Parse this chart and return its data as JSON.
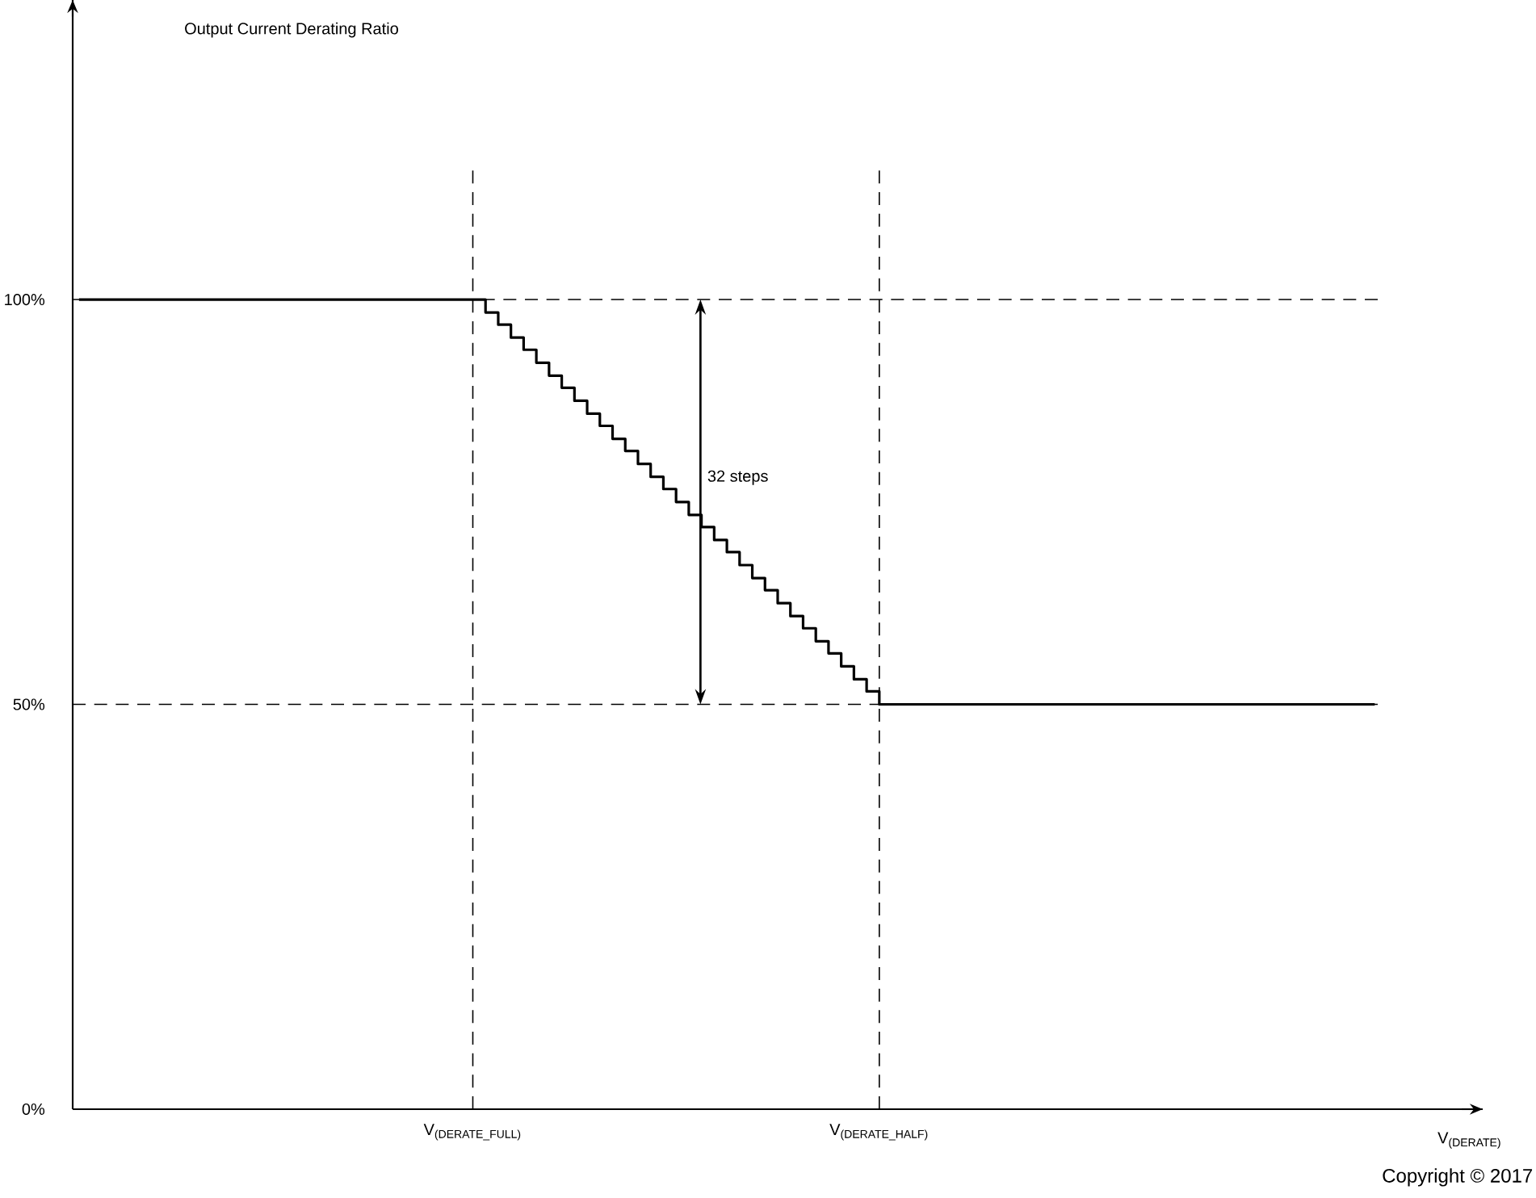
{
  "chart_data": {
    "type": "step",
    "ylabel": "Output Current Derating Ratio",
    "xlabel": "V$_{(DERATE)}$",
    "categories": [
      null,
      null,
      null,
      null,
      null,
      null,
      null,
      null,
      null,
      null,
      null,
      null,
      null,
      null,
      null,
      null,
      null,
      null,
      null,
      null,
      null,
      null,
      null,
      null,
      null,
      null,
      null,
      null,
      null,
      null,
      null,
      "\\text{V}_{\\text{(DERATE\\_FULL)}}",
      null,
      null,
      null,
      null,
      null,
      null,
      null,
      null,
      null,
      null,
      null,
      null,
      null,
      null,
      null,
      null,
      null,
      null,
      null,
      null,
      null,
      null,
      null,
      null,
      null,
      null,
      null,
      null,
      null,
      null,
      null,
      "\\text{V}_{\\text{(DERATE\\_HALF)}}",
      null,
      null,
      null,
      null,
      null,
      null,
      null,
      null,
      null,
      null,
      null,
      null,
      null,
      null,
      null,
      null,
      null,
      null,
      null,
      null,
      null,
      null,
      null,
      null,
      null,
      null,
      null,
      null,
      null,
      null,
      null,
      null,
      null,
      null,
      null,
      null,
      null,
      null,
      null,
      null,
      null,
      null,
      null,
      null,
      null,
      null,
      null
    ],
    "values": [
      100,
      100,
      100,
      100,
      100,
      100,
      100,
      100,
      100,
      100,
      100,
      100,
      100,
      100,
      100,
      100,
      100,
      100,
      100,
      100,
      100,
      100,
      100,
      100,
      100,
      100,
      100,
      100,
      100,
      100,
      100,
      100,
      98.4,
      96.9,
      95.3,
      93.8,
      92.2,
      90.6,
      89.1,
      87.5,
      85.9,
      84.4,
      82.8,
      81.3,
      79.7,
      78.1,
      76.6,
      75,
      73.4,
      71.9,
      70.3,
      68.8,
      67.2,
      65.6,
      64.1,
      62.5,
      60.9,
      59.4,
      57.8,
      56.3,
      54.7,
      53.1,
      51.6,
      50,
      50,
      50,
      50,
      50,
      50,
      50,
      50,
      50,
      50,
      50,
      50,
      50,
      50,
      50,
      50,
      50,
      50,
      50,
      50,
      50,
      50,
      50,
      50,
      50,
      50,
      50,
      50,
      50,
      50,
      50,
      50,
      50,
      50,
      50,
      50,
      50,
      50,
      50,
      50,
      null,
      null,
      null,
      null,
      null,
      null,
      null,
      null
    ],
    "color": "#000000",
    "line_style": "solid",
    "ylim": [
      0,
      137
    ],
    "yticks": [
      {
        "value": 0,
        "label": "0%"
      },
      {
        "value": 50,
        "label": "50%"
      },
      {
        "value": 100,
        "label": "100%"
      }
    ],
    "ref_lines": [
      {
        "axis": "y",
        "value": 100,
        "line_style": "dashed"
      },
      {
        "axis": "y",
        "value": 50,
        "line_style": "dashed"
      }
    ],
    "annotations": [
      "32 steps",
      "Copyright © 2017"
    ]
  }
}
